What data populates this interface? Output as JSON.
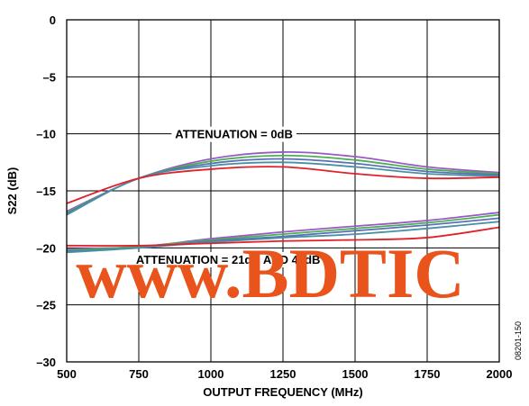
{
  "chart_data": {
    "type": "line",
    "title": "",
    "xlabel": "OUTPUT FREQUENCY (MHz)",
    "ylabel": "S22 (dB)",
    "xlim": [
      500,
      2000
    ],
    "ylim": [
      -30,
      0
    ],
    "xticks": [
      500,
      750,
      1000,
      1250,
      1500,
      1750,
      2000
    ],
    "yticks": [
      0,
      -5,
      -10,
      -15,
      -20,
      -25,
      -30
    ],
    "xtick_labels": [
      "500",
      "750",
      "1000",
      "1250",
      "1500",
      "1750",
      "2000"
    ],
    "ytick_labels": [
      "0",
      "–5",
      "–10",
      "–15",
      "–20",
      "–25",
      "–30"
    ],
    "grid": true,
    "annotations": [
      {
        "text": "ATTENUATION = 0dB",
        "x": 1080,
        "y": -10
      },
      {
        "text": "ATTENUATION = 21dB AND 47dB",
        "x": 1060,
        "y": -21
      }
    ],
    "series": [
      {
        "color": "#9b59c8",
        "group": "0dB",
        "x": [
          500,
          750,
          1000,
          1250,
          1500,
          1750,
          2000
        ],
        "y": [
          -16.8,
          -13.9,
          -12.2,
          -11.6,
          -12.0,
          -12.9,
          -13.4
        ]
      },
      {
        "color": "#4caf50",
        "group": "0dB",
        "x": [
          500,
          750,
          1000,
          1250,
          1500,
          1750,
          2000
        ],
        "y": [
          -16.9,
          -13.9,
          -12.4,
          -11.9,
          -12.3,
          -13.1,
          -13.5
        ]
      },
      {
        "color": "#5b6fb8",
        "group": "0dB",
        "x": [
          500,
          750,
          1000,
          1250,
          1500,
          1750,
          2000
        ],
        "y": [
          -17.0,
          -13.9,
          -12.6,
          -12.2,
          -12.6,
          -13.3,
          -13.6
        ]
      },
      {
        "color": "#4a90a4",
        "group": "0dB",
        "x": [
          500,
          750,
          1000,
          1250,
          1500,
          1750,
          2000
        ],
        "y": [
          -17.1,
          -13.9,
          -12.8,
          -12.5,
          -12.9,
          -13.5,
          -13.7
        ]
      },
      {
        "color": "#e0202a",
        "group": "0dB",
        "x": [
          500,
          750,
          1000,
          1250,
          1500,
          1750,
          2000
        ],
        "y": [
          -16.1,
          -13.9,
          -13.1,
          -12.9,
          -13.5,
          -13.9,
          -13.8
        ]
      },
      {
        "color": "#9b59c8",
        "group": "21dB/47dB",
        "x": [
          500,
          750,
          1000,
          1250,
          1500,
          1750,
          2000
        ],
        "y": [
          -20.1,
          -19.9,
          -19.2,
          -18.6,
          -18.1,
          -17.6,
          -16.9
        ]
      },
      {
        "color": "#4caf50",
        "group": "21dB/47dB",
        "x": [
          500,
          750,
          1000,
          1250,
          1500,
          1750,
          2000
        ],
        "y": [
          -20.2,
          -19.9,
          -19.3,
          -18.8,
          -18.3,
          -17.8,
          -17.1
        ]
      },
      {
        "color": "#5b6fb8",
        "group": "21dB/47dB",
        "x": [
          500,
          750,
          1000,
          1250,
          1500,
          1750,
          2000
        ],
        "y": [
          -20.3,
          -20.0,
          -19.4,
          -19.0,
          -18.5,
          -18.0,
          -17.4
        ]
      },
      {
        "color": "#4a90a4",
        "group": "21dB/47dB",
        "x": [
          500,
          750,
          1000,
          1250,
          1500,
          1750,
          2000
        ],
        "y": [
          -20.4,
          -20.0,
          -19.5,
          -19.1,
          -18.8,
          -18.3,
          -17.7
        ]
      },
      {
        "color": "#e0202a",
        "group": "21dB/47dB",
        "x": [
          500,
          750,
          1000,
          1250,
          1500,
          1750,
          2000
        ],
        "y": [
          -19.8,
          -19.8,
          -19.6,
          -19.4,
          -19.3,
          -19.1,
          -18.2
        ]
      }
    ]
  },
  "figure_id": "08201-150",
  "watermark": {
    "text": "www.BDTIC",
    "color": "#e8541c"
  }
}
